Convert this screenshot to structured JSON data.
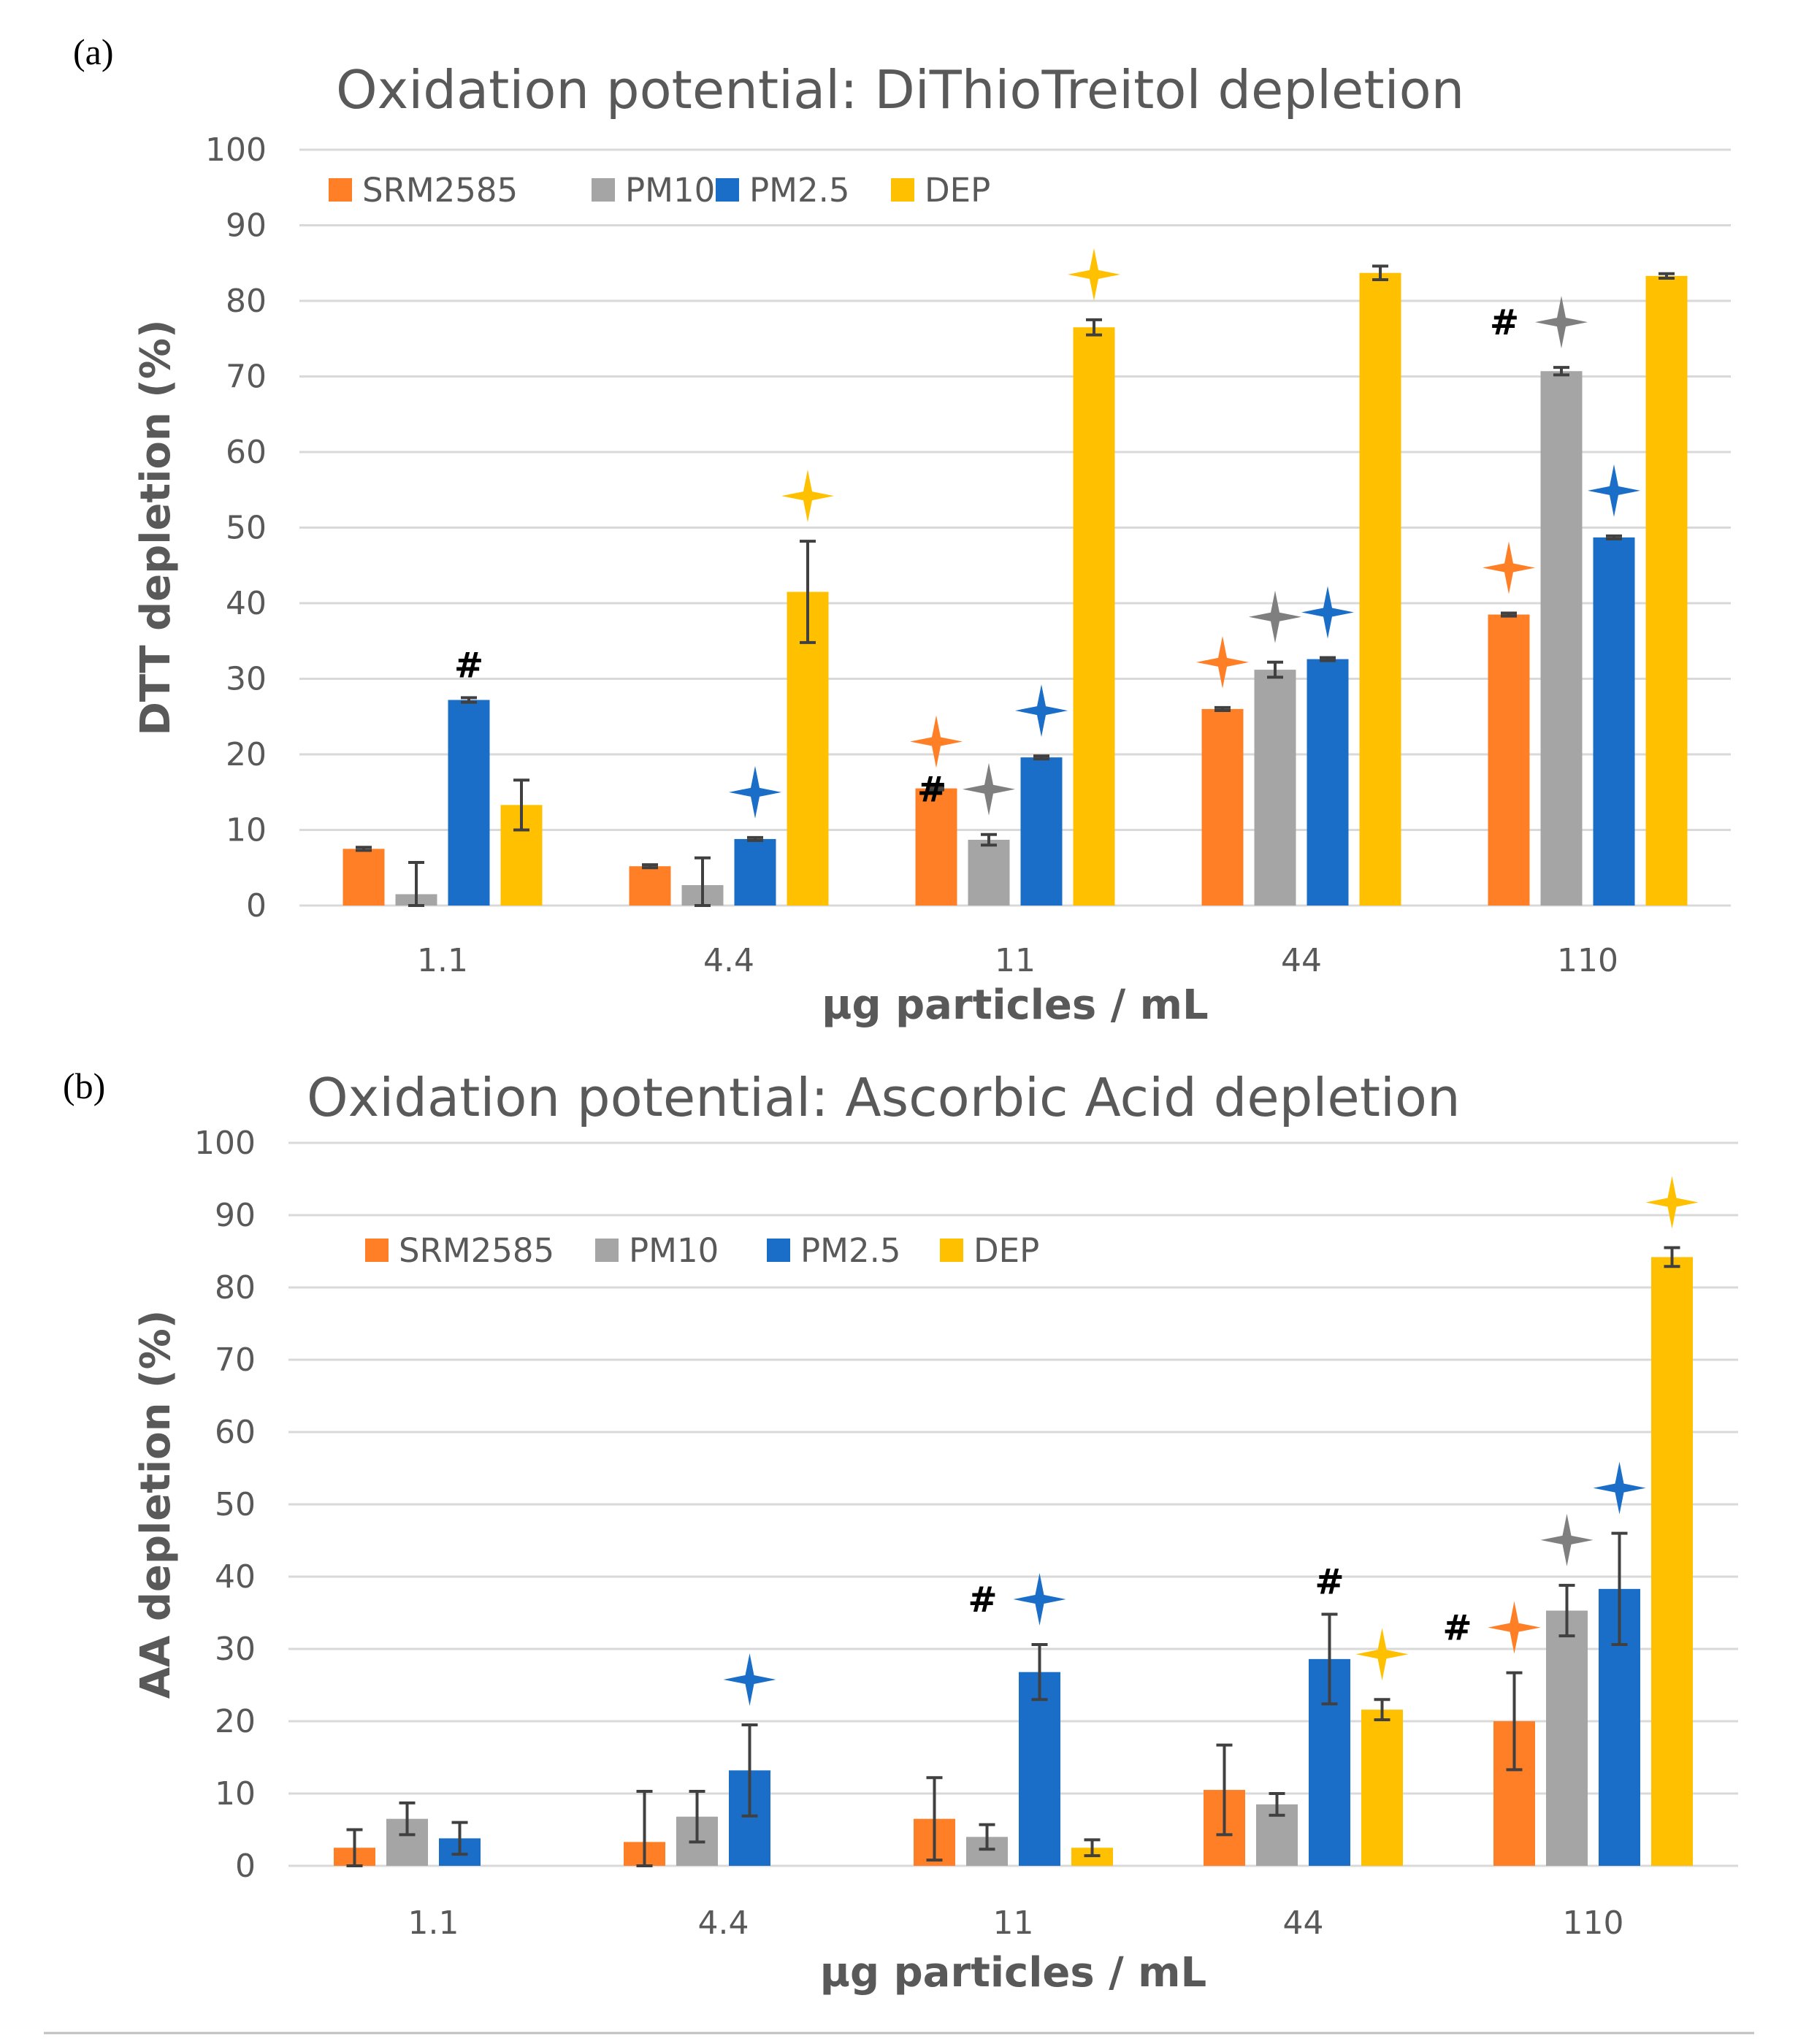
{
  "panels": {
    "a": {
      "label": "(a)"
    },
    "b": {
      "label": "(b)"
    }
  },
  "colors": {
    "SRM2585": "#ff7f27",
    "PM10": "#a5a5a5",
    "PM2.5": "#1a6ec8",
    "DEP": "#ffc000",
    "PM10_star": "#7f7f7f"
  },
  "chart_data": [
    {
      "type": "bar",
      "title": "Oxidation potential: DiThioTreitol depletion",
      "xlabel": "µg particles / mL",
      "ylabel": "DTT depletion  (%)",
      "ylim": [
        0,
        100
      ],
      "yticks": [
        "0",
        "10",
        "20",
        "30",
        "40",
        "50",
        "60",
        "70",
        "80",
        "90",
        "100"
      ],
      "categories": [
        "1.1",
        "4.4",
        "11",
        "44",
        "110"
      ],
      "legend_position": "top-left",
      "series": [
        {
          "name": "SRM2585",
          "values": [
            7.5,
            5.2,
            15.5,
            26,
            38.5
          ],
          "errors": [
            0.2,
            0.2,
            0.2,
            0.2,
            0.2
          ],
          "star": [
            false,
            false,
            true,
            true,
            true
          ],
          "hash": [
            false,
            false,
            false,
            false,
            false
          ]
        },
        {
          "name": "PM10",
          "values": [
            1.5,
            2.7,
            8.7,
            31.2,
            70.7
          ],
          "errors": [
            4.2,
            3.6,
            0.7,
            1.0,
            0.5
          ],
          "star": [
            false,
            false,
            true,
            true,
            true
          ],
          "hash": [
            false,
            false,
            true,
            false,
            true
          ]
        },
        {
          "name": "PM2.5",
          "values": [
            27.2,
            8.8,
            19.6,
            32.6,
            48.7
          ],
          "errors": [
            0.3,
            0.2,
            0.2,
            0.2,
            0.2
          ],
          "star": [
            false,
            true,
            true,
            true,
            true
          ],
          "hash": [
            true,
            false,
            false,
            false,
            false
          ]
        },
        {
          "name": "DEP",
          "values": [
            13.3,
            41.5,
            76.5,
            83.7,
            83.3
          ],
          "errors": [
            3.3,
            6.7,
            1.0,
            0.9,
            0.3
          ],
          "star": [
            false,
            true,
            true,
            false,
            false
          ],
          "hash": [
            false,
            false,
            false,
            false,
            false
          ]
        }
      ],
      "hash_text": "#"
    },
    {
      "type": "bar",
      "title": "Oxidation potential: Ascorbic Acid depletion",
      "xlabel": "µg particles / mL",
      "ylabel": "AA depletion (%)",
      "ylim": [
        0,
        100
      ],
      "yticks": [
        "0",
        "10",
        "20",
        "30",
        "40",
        "50",
        "60",
        "70",
        "80",
        "90",
        "100"
      ],
      "categories": [
        "1.1",
        "4.4",
        "11",
        "44",
        "110"
      ],
      "legend_position": "top-left",
      "series": [
        {
          "name": "SRM2585",
          "values": [
            2.5,
            3.3,
            6.5,
            10.5,
            20
          ],
          "errors": [
            2.5,
            7.0,
            5.7,
            6.2,
            6.7
          ],
          "star": [
            false,
            false,
            false,
            false,
            true
          ],
          "hash": [
            false,
            false,
            false,
            false,
            true
          ]
        },
        {
          "name": "PM10",
          "values": [
            6.5,
            6.8,
            4.0,
            8.5,
            35.3
          ],
          "errors": [
            2.2,
            3.5,
            1.7,
            1.5,
            3.5
          ],
          "star": [
            false,
            false,
            false,
            false,
            true
          ],
          "hash": [
            false,
            false,
            false,
            false,
            false
          ]
        },
        {
          "name": "PM2.5",
          "values": [
            3.8,
            13.2,
            26.8,
            28.6,
            38.3
          ],
          "errors": [
            2.2,
            6.3,
            3.8,
            6.2,
            7.7
          ],
          "star": [
            false,
            true,
            true,
            false,
            true
          ],
          "hash": [
            false,
            false,
            true,
            true,
            false
          ]
        },
        {
          "name": "DEP",
          "values": [
            0,
            0,
            2.5,
            21.6,
            84.2
          ],
          "errors": [
            0,
            0,
            1.1,
            1.4,
            1.3
          ],
          "star": [
            false,
            false,
            false,
            true,
            true
          ],
          "hash": [
            false,
            false,
            false,
            false,
            false
          ]
        }
      ],
      "hash_text": "#"
    }
  ]
}
